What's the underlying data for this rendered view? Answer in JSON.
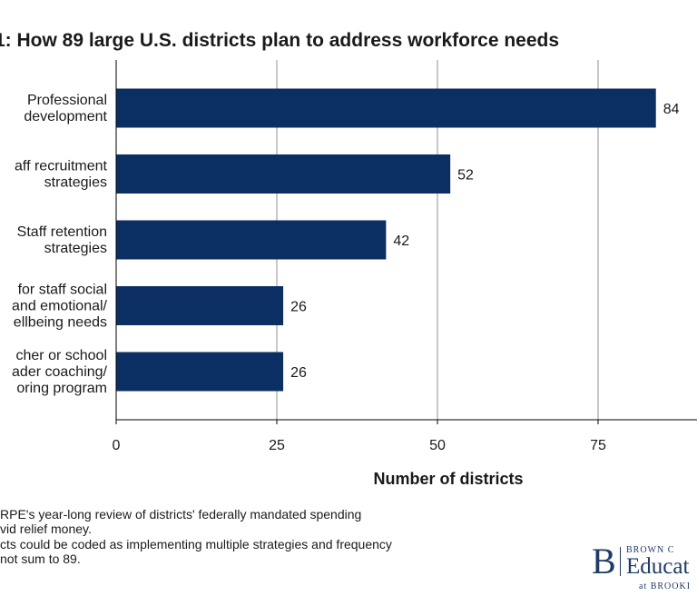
{
  "title": "1: How 89 large U.S. districts plan to address workforce needs",
  "chart_data": {
    "type": "bar",
    "orientation": "horizontal",
    "categories": [
      [
        "Professional",
        "development"
      ],
      [
        "aff recruitment",
        "strategies"
      ],
      [
        "Staff retention",
        "strategies"
      ],
      [
        "for staff social",
        "and emotional/",
        "ellbeing needs"
      ],
      [
        "cher or school",
        "ader coaching/",
        "oring program"
      ]
    ],
    "values": [
      84,
      52,
      42,
      26,
      26
    ],
    "value_labels": [
      "84",
      "52",
      "42",
      "26",
      "26"
    ],
    "xlabel": "Number of districts",
    "ylabel": "",
    "xlim": [
      0,
      90
    ],
    "xticks": [
      0,
      25,
      50,
      75
    ],
    "xtick_labels": [
      "0",
      "25",
      "50",
      "75"
    ],
    "grid": true,
    "bar_color": "#0b2e63",
    "grid_color": "#c8c8c8"
  },
  "notes": [
    "RPE's year-long review of districts' federally mandated spending",
    "vid relief money.",
    "cts could be coded as implementing multiple strategies and frequency",
    "not sum to 89."
  ],
  "logo": {
    "letter": "B",
    "top": "BROWN C",
    "middle": "Educat",
    "bottom": "at BROOKI"
  }
}
